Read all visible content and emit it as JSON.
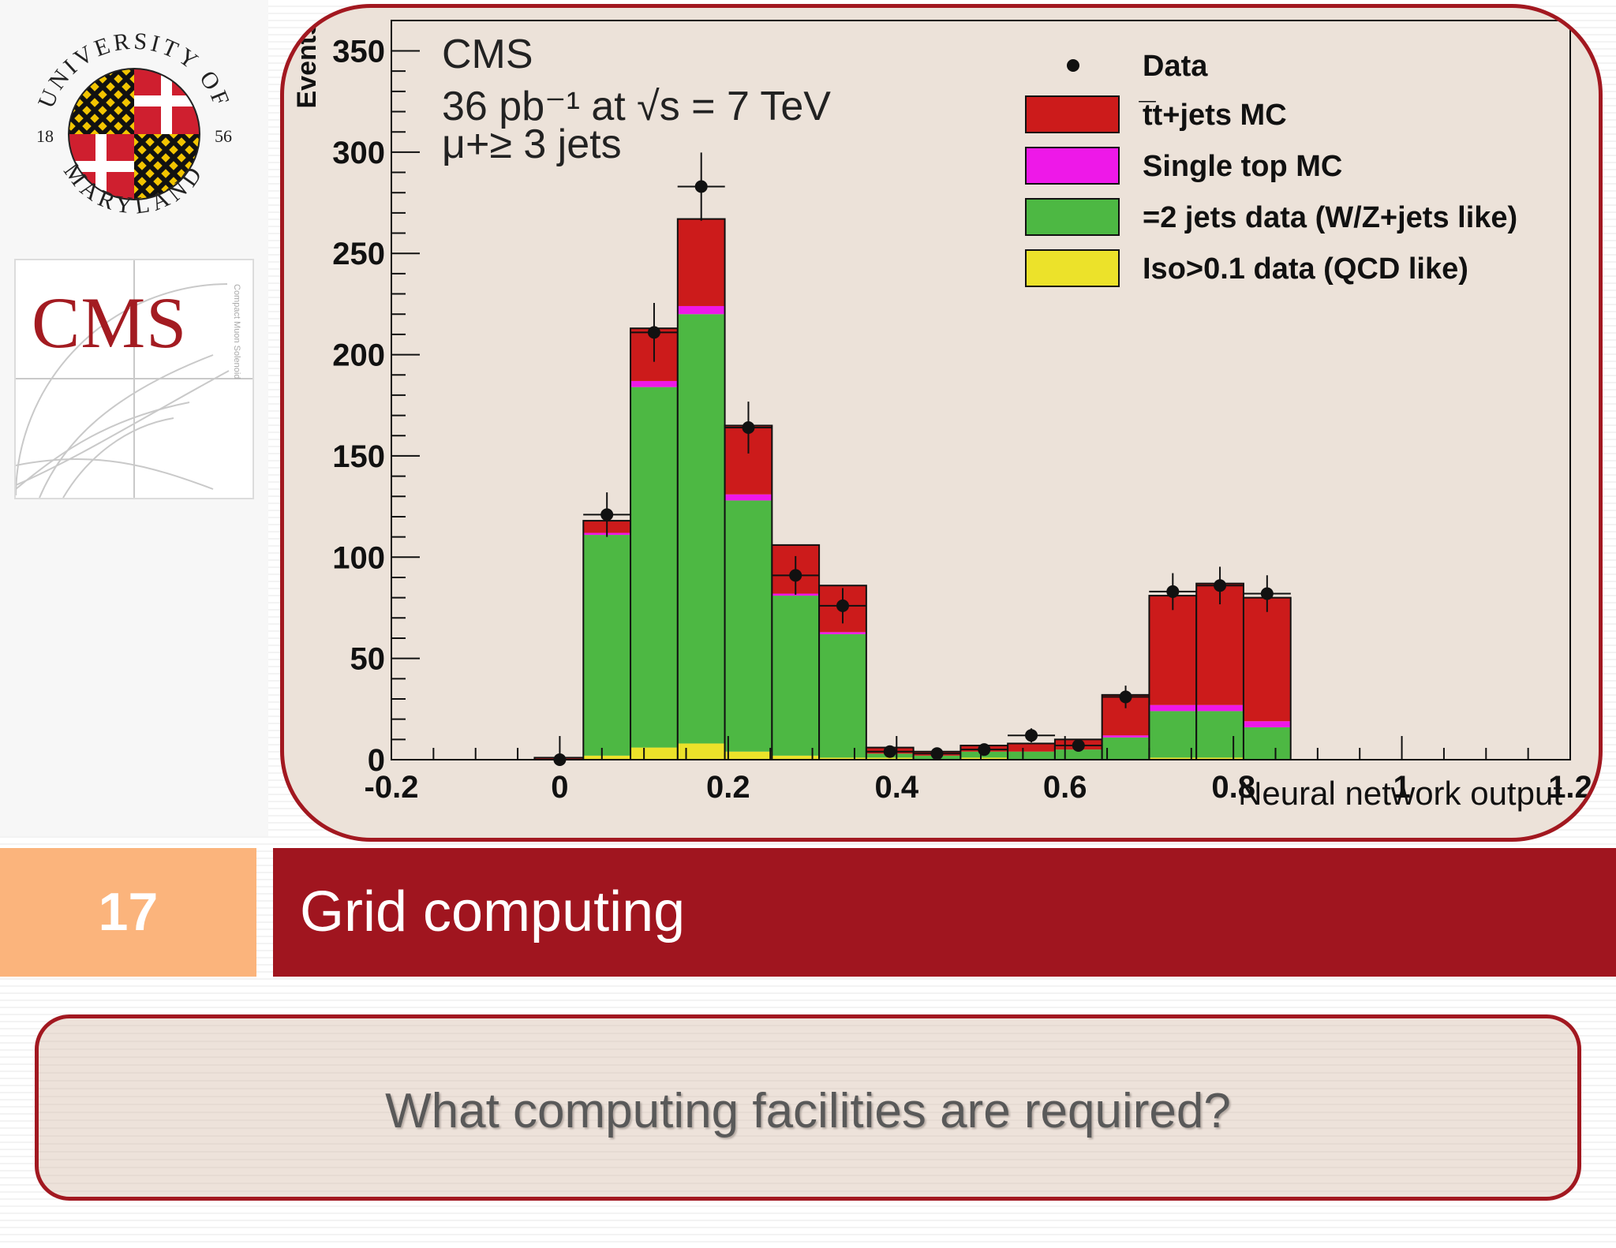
{
  "slide": {
    "number": "17",
    "title": "Grid computing",
    "question": "What computing facilities are required?"
  },
  "logos": {
    "umd": {
      "arc_top": "UNIVERSITY OF",
      "arc_bottom": "MARYLAND",
      "year_left": "18",
      "year_right": "56"
    },
    "cms": {
      "text": "CMS",
      "subtitle": "Compact Muon Solenoid"
    }
  },
  "chart_data": {
    "type": "bar",
    "stacked": true,
    "annotations": [
      "CMS",
      "36 pb⁻¹ at √s = 7 TeV",
      "μ+≥ 3 jets"
    ],
    "xlabel": "Neural network output",
    "ylabel": "Events",
    "xlim": [
      -0.2,
      1.2
    ],
    "ylim": [
      0,
      365
    ],
    "x_ticks": [
      "-0.2",
      "0",
      "0.2",
      "0.4",
      "0.6",
      "0.8",
      "1",
      "1.2"
    ],
    "y_ticks": [
      "0",
      "50",
      "100",
      "150",
      "200",
      "250",
      "300",
      "350"
    ],
    "bin_edges": [
      -0.03,
      0.028,
      0.084,
      0.14,
      0.196,
      0.252,
      0.308,
      0.364,
      0.42,
      0.476,
      0.532,
      0.588,
      0.644,
      0.7,
      0.756,
      0.812,
      0.868
    ],
    "legend_position": "top-right",
    "series": [
      {
        "name": "Iso>0.1 data (QCD like)",
        "color": "#ece22a",
        "values": [
          0,
          2,
          6,
          8,
          4,
          2,
          1,
          1,
          0,
          1,
          0,
          0,
          0,
          1,
          1,
          0
        ]
      },
      {
        "name": "=2 jets data (W/Z+jets like)",
        "color": "#4db843",
        "values": [
          0,
          109,
          178,
          212,
          124,
          79,
          61,
          2,
          2,
          3,
          4,
          5,
          11,
          23,
          23,
          16
        ]
      },
      {
        "name": "Single top MC",
        "color": "#ee18e8",
        "values": [
          0,
          1,
          3,
          4,
          3,
          1,
          1,
          0,
          0,
          0,
          0,
          0,
          1,
          3,
          3,
          3
        ]
      },
      {
        "name": "t̅t+jets MC",
        "color": "#cc1b1b",
        "values": [
          1,
          6,
          26,
          43,
          34,
          24,
          23,
          3,
          2,
          3,
          4,
          5,
          20,
          54,
          60,
          61
        ]
      }
    ],
    "data_points": {
      "name": "Data",
      "x": [
        0.0,
        0.056,
        0.112,
        0.168,
        0.224,
        0.28,
        0.336,
        0.392,
        0.448,
        0.504,
        0.56,
        0.616,
        0.672,
        0.728,
        0.784,
        0.84
      ],
      "y": [
        0,
        121,
        211,
        283,
        164,
        91,
        76,
        4,
        3,
        5,
        12,
        7,
        31,
        83,
        86,
        82
      ]
    }
  }
}
